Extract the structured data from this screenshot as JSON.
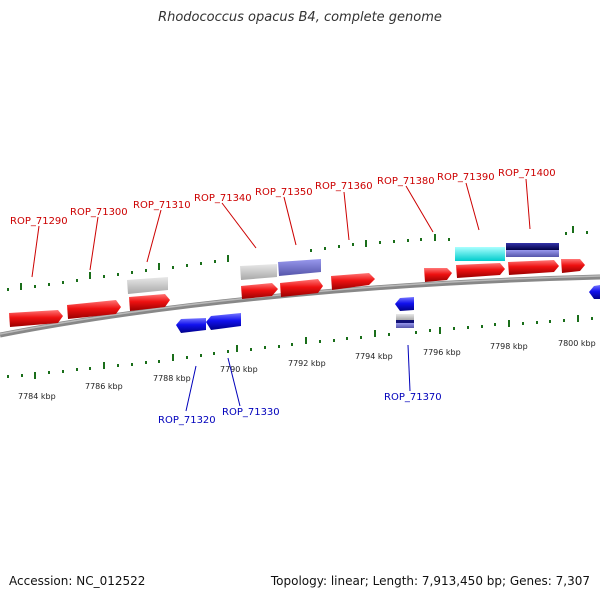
{
  "title": "Rhodococcus opacus B4, complete genome",
  "footer": {
    "accession": "Accession: NC_012522",
    "summary": "Topology: linear; Length: 7,913,450 bp; Genes: 7,307"
  },
  "colors": {
    "forward_gene": "#ee1111",
    "reverse_gene": "#1111ee",
    "forward_label": "#cc0000",
    "reverse_label": "#0000bb",
    "ruler_tick": "#1a6e1a",
    "backbone": "#888888",
    "gray_feature": "#c0c0c0",
    "purple_feature": "#7777cc",
    "cyan_feature": "#00eeee",
    "navy_feature": "#111177"
  },
  "scale_ticks": [
    "7784 kbp",
    "7786 kbp",
    "7788 kbp",
    "7790 kbp",
    "7792 kbp",
    "7794 kbp",
    "7796 kbp",
    "7798 kbp",
    "7800 kbp"
  ],
  "forward_genes": [
    "ROP_71290",
    "ROP_71300",
    "ROP_71310",
    "ROP_71340",
    "ROP_71350",
    "ROP_71360",
    "ROP_71380",
    "ROP_71390",
    "ROP_71400"
  ],
  "reverse_genes": [
    "ROP_71320",
    "ROP_71330",
    "ROP_71370"
  ]
}
